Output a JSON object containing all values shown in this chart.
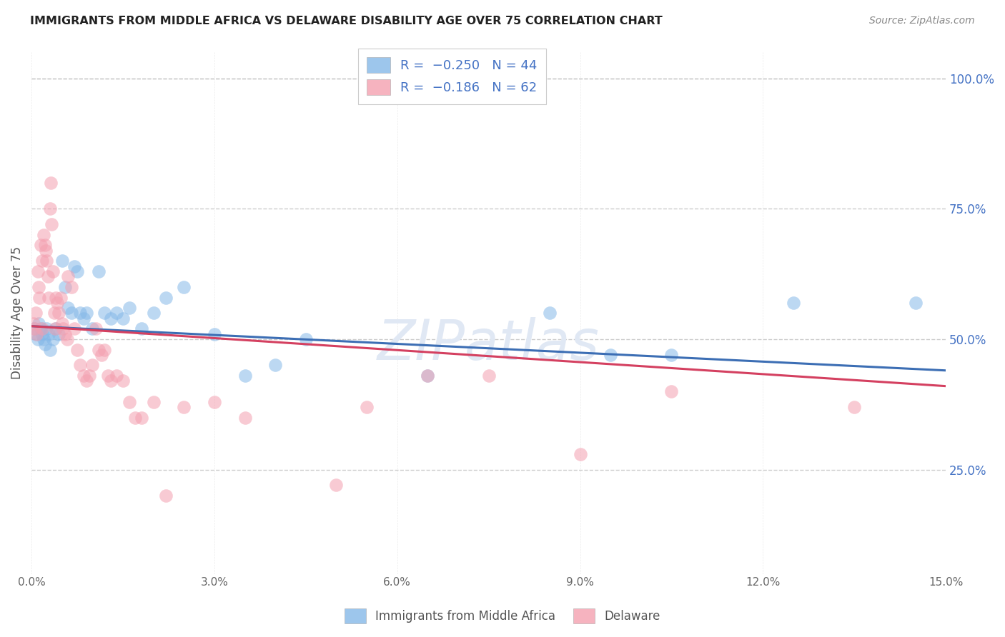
{
  "title": "IMMIGRANTS FROM MIDDLE AFRICA VS DELAWARE DISABILITY AGE OVER 75 CORRELATION CHART",
  "source": "Source: ZipAtlas.com",
  "ylabel": "Disability Age Over 75",
  "xmin": 0.0,
  "xmax": 15.0,
  "ymin": 5.0,
  "ymax": 105.0,
  "yticks": [
    25.0,
    50.0,
    75.0,
    100.0
  ],
  "ytick_labels": [
    "25.0%",
    "50.0%",
    "75.0%",
    "100.0%"
  ],
  "grid_color": "#cccccc",
  "background_color": "#ffffff",
  "blue_color": "#85b8e8",
  "pink_color": "#f4a0b0",
  "blue_line_color": "#3c6eb4",
  "pink_line_color": "#d44060",
  "legend_R_blue": "-0.250",
  "legend_N_blue": "44",
  "legend_R_pink": "-0.186",
  "legend_N_pink": "62",
  "blue_scatter": [
    [
      0.05,
      52
    ],
    [
      0.08,
      51
    ],
    [
      0.1,
      50
    ],
    [
      0.12,
      53
    ],
    [
      0.15,
      52
    ],
    [
      0.18,
      51
    ],
    [
      0.2,
      50
    ],
    [
      0.22,
      49
    ],
    [
      0.25,
      52
    ],
    [
      0.28,
      51
    ],
    [
      0.3,
      48
    ],
    [
      0.35,
      50
    ],
    [
      0.4,
      52
    ],
    [
      0.45,
      51
    ],
    [
      0.5,
      65
    ],
    [
      0.55,
      60
    ],
    [
      0.6,
      56
    ],
    [
      0.65,
      55
    ],
    [
      0.7,
      64
    ],
    [
      0.75,
      63
    ],
    [
      0.8,
      55
    ],
    [
      0.85,
      54
    ],
    [
      0.9,
      55
    ],
    [
      1.0,
      52
    ],
    [
      1.1,
      63
    ],
    [
      1.2,
      55
    ],
    [
      1.3,
      54
    ],
    [
      1.4,
      55
    ],
    [
      1.5,
      54
    ],
    [
      1.6,
      56
    ],
    [
      1.8,
      52
    ],
    [
      2.0,
      55
    ],
    [
      2.2,
      58
    ],
    [
      2.5,
      60
    ],
    [
      3.0,
      51
    ],
    [
      3.5,
      43
    ],
    [
      4.0,
      45
    ],
    [
      4.5,
      50
    ],
    [
      6.5,
      43
    ],
    [
      8.5,
      55
    ],
    [
      9.5,
      47
    ],
    [
      10.5,
      47
    ],
    [
      12.5,
      57
    ],
    [
      14.5,
      57
    ]
  ],
  "pink_scatter": [
    [
      0.03,
      53
    ],
    [
      0.05,
      52
    ],
    [
      0.07,
      55
    ],
    [
      0.08,
      51
    ],
    [
      0.1,
      63
    ],
    [
      0.12,
      60
    ],
    [
      0.13,
      58
    ],
    [
      0.15,
      68
    ],
    [
      0.17,
      65
    ],
    [
      0.18,
      52
    ],
    [
      0.2,
      70
    ],
    [
      0.22,
      68
    ],
    [
      0.23,
      67
    ],
    [
      0.25,
      65
    ],
    [
      0.27,
      62
    ],
    [
      0.28,
      58
    ],
    [
      0.3,
      75
    ],
    [
      0.32,
      80
    ],
    [
      0.33,
      72
    ],
    [
      0.35,
      63
    ],
    [
      0.37,
      55
    ],
    [
      0.38,
      52
    ],
    [
      0.4,
      58
    ],
    [
      0.42,
      57
    ],
    [
      0.45,
      55
    ],
    [
      0.48,
      58
    ],
    [
      0.5,
      53
    ],
    [
      0.52,
      52
    ],
    [
      0.55,
      51
    ],
    [
      0.58,
      50
    ],
    [
      0.6,
      62
    ],
    [
      0.65,
      60
    ],
    [
      0.7,
      52
    ],
    [
      0.75,
      48
    ],
    [
      0.8,
      45
    ],
    [
      0.85,
      43
    ],
    [
      0.9,
      42
    ],
    [
      0.95,
      43
    ],
    [
      1.0,
      45
    ],
    [
      1.05,
      52
    ],
    [
      1.1,
      48
    ],
    [
      1.15,
      47
    ],
    [
      1.2,
      48
    ],
    [
      1.25,
      43
    ],
    [
      1.3,
      42
    ],
    [
      1.4,
      43
    ],
    [
      1.5,
      42
    ],
    [
      1.6,
      38
    ],
    [
      1.7,
      35
    ],
    [
      1.8,
      35
    ],
    [
      2.0,
      38
    ],
    [
      2.2,
      20
    ],
    [
      2.5,
      37
    ],
    [
      3.0,
      38
    ],
    [
      3.5,
      35
    ],
    [
      5.0,
      22
    ],
    [
      5.5,
      37
    ],
    [
      6.5,
      43
    ],
    [
      7.5,
      43
    ],
    [
      9.0,
      28
    ],
    [
      10.5,
      40
    ],
    [
      13.5,
      37
    ]
  ],
  "blue_line": [
    [
      0.0,
      52.5
    ],
    [
      15.0,
      44.0
    ]
  ],
  "pink_line": [
    [
      0.0,
      52.5
    ],
    [
      15.0,
      41.0
    ]
  ]
}
